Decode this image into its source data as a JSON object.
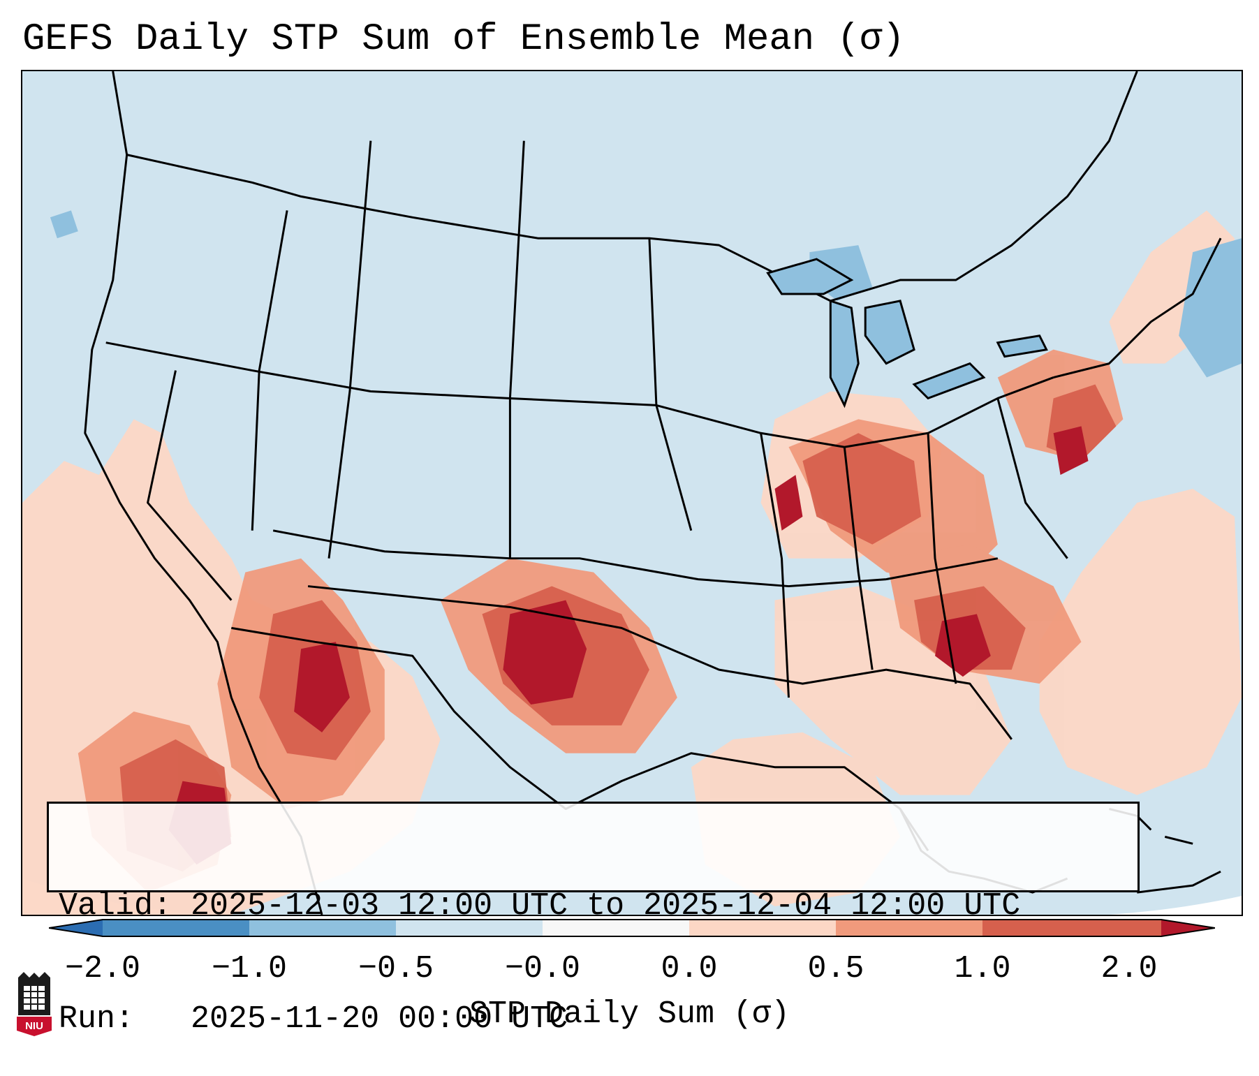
{
  "title": "GEFS Daily STP Sum of Ensemble Mean (σ)",
  "info": {
    "valid_label": "Valid:",
    "valid_value": "2025-12-03 12:00 UTC to 2025-12-04 12:00 UTC",
    "run_label": "Run:",
    "run_value": "2025-11-20 00:00 UTC"
  },
  "colorbar": {
    "label": "STP Daily Sum (σ)",
    "ticks": [
      "−2.0",
      "−1.0",
      "−0.5",
      "−0.0",
      "0.0",
      "0.5",
      "1.0",
      "2.0"
    ],
    "bins": [
      {
        "range": "< -2.0",
        "color": "#2b6db2"
      },
      {
        "range": "-2.0 to -1.0",
        "color": "#4a8fc3"
      },
      {
        "range": "-1.0 to -0.5",
        "color": "#8fc0de"
      },
      {
        "range": "-0.5 to -0.0",
        "color": "#d0e4ef"
      },
      {
        "range": "-0.0 to 0.0",
        "color": "#f7f7f7"
      },
      {
        "range": "0.0 to 0.5",
        "color": "#fcd7c5"
      },
      {
        "range": "0.5 to 1.0",
        "color": "#f09a7c"
      },
      {
        "range": "1.0 to 2.0",
        "color": "#d6604d"
      },
      {
        "range": "> 2.0",
        "color": "#b2182b"
      }
    ]
  },
  "logo": {
    "text": "NIU"
  },
  "map_colors": {
    "background": "#d0e4ef",
    "light_red": "#fcd7c5",
    "mid_red": "#f09a7c",
    "red": "#d6604d",
    "dark_red": "#b2182b",
    "light_blue": "#8fc0de"
  }
}
